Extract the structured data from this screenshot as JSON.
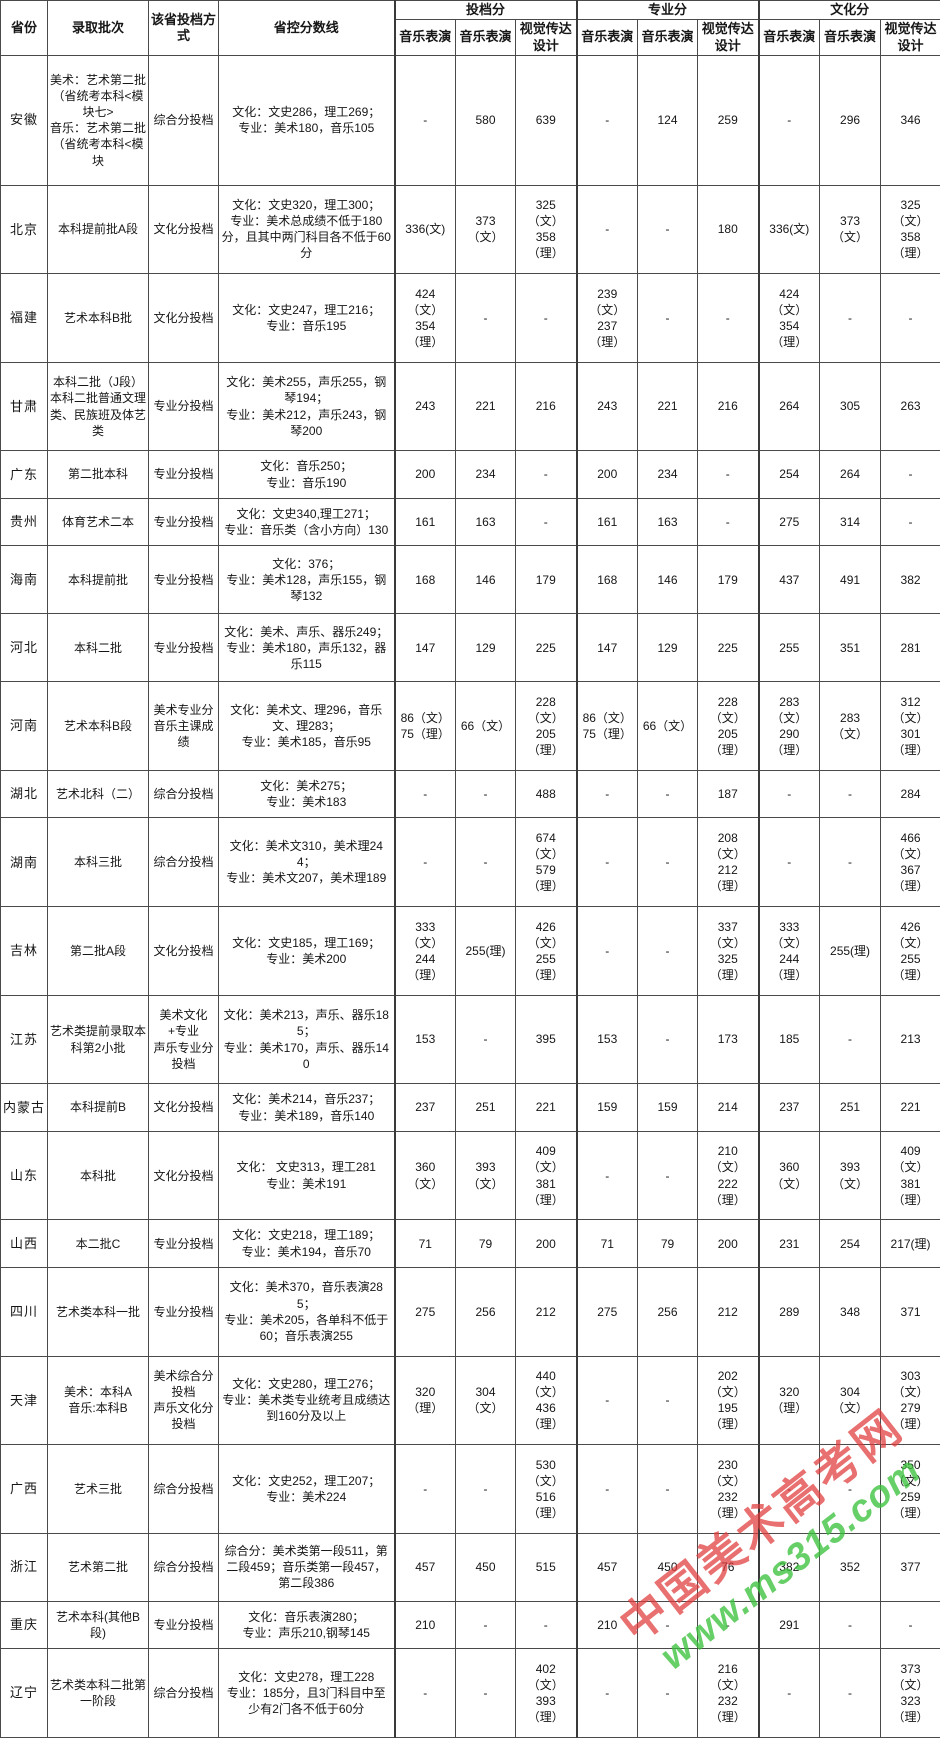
{
  "table": {
    "headers": {
      "province": "省份",
      "batch": "录取批次",
      "method": "该省投档方式",
      "control_line": "省控分数线",
      "groups": [
        {
          "label": "投档分",
          "subs": [
            "音乐表演",
            "音乐表演",
            "视觉传达设计"
          ]
        },
        {
          "label": "专业分",
          "subs": [
            "音乐表演",
            "音乐表演",
            "视觉传达设计"
          ]
        },
        {
          "label": "文化分",
          "subs": [
            "音乐表演",
            "音乐表演",
            "视觉传达设计"
          ]
        }
      ]
    },
    "rows": [
      {
        "province": "安徽",
        "batch": "美术：艺术第二批（省统考本科<模块七>\n音乐：艺术第二批（省统考本科<模块",
        "method": "综合分投档",
        "control_line": "文化：文史286，理工269；\n专业：美术180，音乐105",
        "scores": [
          "-",
          "580",
          "639",
          "-",
          "124",
          "259",
          "-",
          "296",
          "346"
        ]
      },
      {
        "province": "北京",
        "batch": "本科提前批A段",
        "method": "文化分投档",
        "control_line": "文化：文史320，理工300；\n专业：美术总成绩不低于180分，且其中两门科目各不低于60分",
        "scores": [
          "336(文)",
          "373\n（文）",
          "325\n（文）\n358\n（理）",
          "-",
          "-",
          "180",
          "336(文)",
          "373\n（文）",
          "325\n（文）\n358\n（理）"
        ]
      },
      {
        "province": "福建",
        "batch": "艺术本科B批",
        "method": "文化分投档",
        "control_line": "文化：文史247，理工216；\n专业：音乐195",
        "scores": [
          "424\n（文）\n354\n（理）",
          "-",
          "-",
          "239\n（文）\n237\n（理）",
          "-",
          "-",
          "424\n（文）\n354\n（理）",
          "-",
          "-"
        ]
      },
      {
        "province": "甘肃",
        "batch": "本科二批（J段）\n本科二批普通文理类、民族班及体艺类",
        "method": "专业分投档",
        "control_line": "文化：美术255，声乐255，钢琴194；\n专业：美术212，声乐243，钢琴200",
        "scores": [
          "243",
          "221",
          "216",
          "243",
          "221",
          "216",
          "264",
          "305",
          "263"
        ]
      },
      {
        "province": "广东",
        "batch": "第二批本科",
        "method": "专业分投档",
        "control_line": "文化：音乐250；\n专业：音乐190",
        "scores": [
          "200",
          "234",
          "-",
          "200",
          "234",
          "-",
          "254",
          "264",
          "-"
        ]
      },
      {
        "province": "贵州",
        "batch": "体育艺术二本",
        "method": "专业分投档",
        "control_line": "文化：文史340,理工271；\n专业：音乐类（含小方向）130",
        "scores": [
          "161",
          "163",
          "-",
          "161",
          "163",
          "-",
          "275",
          "314",
          "-"
        ]
      },
      {
        "province": "海南",
        "batch": "本科提前批",
        "method": "专业分投档",
        "control_line": "文化：376；\n专业：美术128，声乐155，钢琴132",
        "scores": [
          "168",
          "146",
          "179",
          "168",
          "146",
          "179",
          "437",
          "491",
          "382"
        ]
      },
      {
        "province": "河北",
        "batch": "本科二批",
        "method": "专业分投档",
        "control_line": "文化：美术、声乐、器乐249；\n专业：美术180，声乐132，器乐115",
        "scores": [
          "147",
          "129",
          "225",
          "147",
          "129",
          "225",
          "255",
          "351",
          "281"
        ]
      },
      {
        "province": "河南",
        "batch": "艺术本科B段",
        "method": "美术专业分\n音乐主课成绩",
        "control_line": "文化：美术文、理296，音乐文、理283；\n专业：美术185，音乐95",
        "scores": [
          "86（文）\n75（理）",
          "66（文）",
          "228\n（文）\n205\n（理）",
          "86（文）\n75（理）",
          "66（文）",
          "228\n（文）\n205\n（理）",
          "283\n（文）\n290\n（理）",
          "283\n（文）",
          "312\n（文）\n301\n（理）"
        ]
      },
      {
        "province": "湖北",
        "batch": "艺术北科（二）",
        "method": "综合分投档",
        "control_line": "文化：美术275；\n专业：美术183",
        "scores": [
          "-",
          "-",
          "488",
          "-",
          "-",
          "187",
          "-",
          "-",
          "284"
        ]
      },
      {
        "province": "湖南",
        "batch": "本科三批",
        "method": "综合分投档",
        "control_line": "文化：美术文310，美术理244；\n专业：美术文207，美术理189",
        "scores": [
          "-",
          "-",
          "674\n（文）\n579\n（理）",
          "-",
          "-",
          "208\n（文）\n212\n（理）",
          "-",
          "-",
          "466\n（文）\n367\n（理）"
        ]
      },
      {
        "province": "吉林",
        "batch": "第二批A段",
        "method": "文化分投档",
        "control_line": "文化：文史185，理工169；\n专业：美术200",
        "scores": [
          "333\n（文）\n244\n（理）",
          "255(理)",
          "426\n（文）\n255\n（理）",
          "-",
          "-",
          "337\n（文）\n325\n（理）",
          "333\n（文）\n244\n（理）",
          "255(理)",
          "426\n（文）\n255\n（理）"
        ]
      },
      {
        "province": "江苏",
        "batch": "艺术类提前录取本科第2小批",
        "method": "美术文化+专业\n声乐专业分投档",
        "control_line": "文化：美术213，声乐、器乐185；\n专业：美术170，声乐、器乐140",
        "scores": [
          "153",
          "-",
          "395",
          "153",
          "-",
          "173",
          "185",
          "-",
          "213"
        ]
      },
      {
        "province": "内蒙古",
        "batch": "本科提前B",
        "method": "文化分投档",
        "control_line": "文化：美术214，音乐237；\n专业：美术189，音乐140",
        "scores": [
          "237",
          "251",
          "221",
          "159",
          "159",
          "214",
          "237",
          "251",
          "221"
        ]
      },
      {
        "province": "山东",
        "batch": "本科批",
        "method": "文化分投档",
        "control_line": "文化： 文史313，理工281\n专业：美术191",
        "scores": [
          "360\n（文）",
          "393\n（文）",
          "409\n（文）\n381\n（理）",
          "-",
          "-",
          "210\n（文）\n222\n（理）",
          "360\n（文）",
          "393\n（文）",
          "409\n（文）\n381\n（理）"
        ]
      },
      {
        "province": "山西",
        "batch": "本二批C",
        "method": "专业分投档",
        "control_line": "文化：文史218，理工189；\n专业：美术194，音乐70",
        "scores": [
          "71",
          "79",
          "200",
          "71",
          "79",
          "200",
          "231",
          "254",
          "217(理)"
        ]
      },
      {
        "province": "四川",
        "batch": "艺术类本科一批",
        "method": "专业分投档",
        "control_line": "文化：美术370，音乐表演285；\n专业：美术205，各单科不低于60；音乐表演255",
        "scores": [
          "275",
          "256",
          "212",
          "275",
          "256",
          "212",
          "289",
          "348",
          "371"
        ]
      },
      {
        "province": "天津",
        "batch": "美术：本科A\n音乐:本科B",
        "method": "美术综合分投档\n声乐文化分投档",
        "control_line": "文化：文史280，理工276；\n专业：美术类专业统考且成绩达到160分及以上",
        "scores": [
          "320\n（理）",
          "304\n（文）",
          "440\n（文）\n436\n（理）",
          "-",
          "-",
          "202\n（文）\n195\n（理）",
          "320\n（理）",
          "304\n（文）",
          "303\n（文）\n279\n（理）"
        ]
      },
      {
        "province": "广西",
        "batch": "艺术三批",
        "method": "综合分投档",
        "control_line": "文化：文史252，理工207；\n专业：美术224",
        "scores": [
          "-",
          "-",
          "530\n（文）\n516\n（理）",
          "-",
          "-",
          "230\n（文）\n232\n（理）",
          "-",
          "-",
          "350\n（文）\n259\n（理）"
        ]
      },
      {
        "province": "浙江",
        "batch": "艺术第二批",
        "method": "综合分投档",
        "control_line": "综合分：美术类第一段511，第二段459；音乐类第一段457，第二段386",
        "scores": [
          "457",
          "450",
          "515",
          "457",
          "450",
          "76",
          "382",
          "352",
          "377"
        ]
      },
      {
        "province": "重庆",
        "batch": "艺术本科(其他B段)",
        "method": "专业分投档",
        "control_line": "文化：音乐表演280；\n专业：声乐210,钢琴145",
        "scores": [
          "210",
          "-",
          "-",
          "210",
          "-",
          "-",
          "291",
          "-",
          "-"
        ]
      },
      {
        "province": "辽宁",
        "batch": "艺术类本科二批第一阶段",
        "method": "综合分投档",
        "control_line": "文化：文史278，理工228\n专业：185分，且3门科目中至少有2门各不低于60分",
        "scores": [
          "-",
          "-",
          "402\n（文）\n393\n（理）",
          "-",
          "-",
          "216\n（文）\n232\n（理）",
          "-",
          "-",
          "373\n（文）\n323\n（理）"
        ]
      }
    ]
  },
  "watermark": {
    "line1": "中国美术高考网",
    "line2": "www.ms315.com",
    "line1_color": "#e03a3a",
    "line2_color": "#3dc23d"
  }
}
